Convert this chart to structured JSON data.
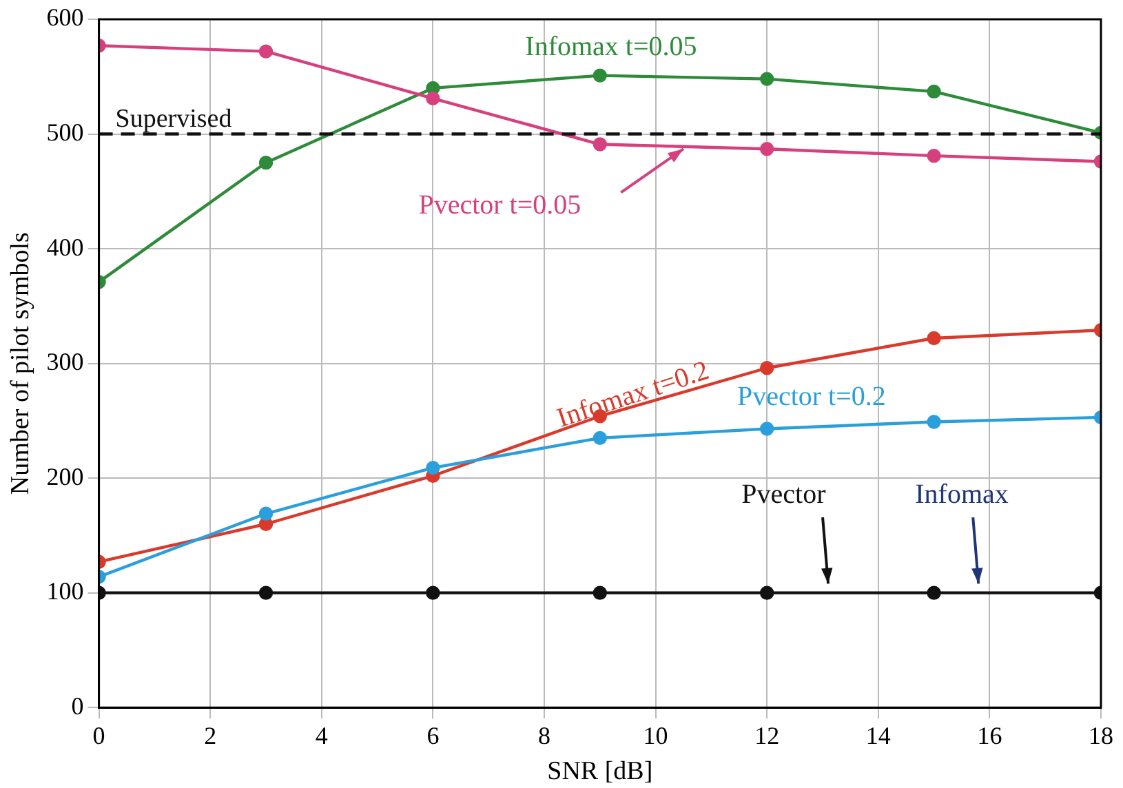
{
  "chart_data": {
    "type": "line",
    "xlabel": "SNR [dB]",
    "ylabel": "Number of pilot symbols",
    "x": [
      0,
      3,
      6,
      9,
      12,
      15,
      18
    ],
    "xlim": [
      0,
      18
    ],
    "xticks": [
      0,
      2,
      4,
      6,
      8,
      10,
      12,
      14,
      16,
      18
    ],
    "ylim": [
      0,
      600
    ],
    "yticks": [
      0,
      100,
      200,
      300,
      400,
      500,
      600
    ],
    "grid": true,
    "legend": false,
    "marker": "circle",
    "line_style": "solid",
    "series": [
      {
        "name": "Infomax t=0.05",
        "color": "#2e8b3a",
        "values": [
          371,
          475,
          540,
          551,
          548,
          537,
          501
        ]
      },
      {
        "name": "Pvector t=0.05",
        "color": "#d6407e",
        "values": [
          577,
          572,
          531,
          491,
          487,
          481,
          476
        ]
      },
      {
        "name": "Infomax t=0.2",
        "color": "#d93a2b",
        "values": [
          127,
          160,
          202,
          254,
          296,
          322,
          329
        ]
      },
      {
        "name": "Pvector t=0.2",
        "color": "#2b9fdc",
        "values": [
          114,
          169,
          209,
          235,
          243,
          249,
          253
        ]
      },
      {
        "name": "Infomax",
        "color": "#1f3578",
        "values": [
          null,
          null,
          null,
          null,
          null,
          null,
          null
        ]
      },
      {
        "name": "Pvector",
        "color": "#111111",
        "values": [
          100,
          100,
          100,
          100,
          100,
          100,
          100
        ]
      }
    ],
    "ref_lines": [
      {
        "axis": "y",
        "value": 500,
        "label": "Supervised",
        "color": "#111111",
        "line_style": "dashed"
      }
    ]
  }
}
